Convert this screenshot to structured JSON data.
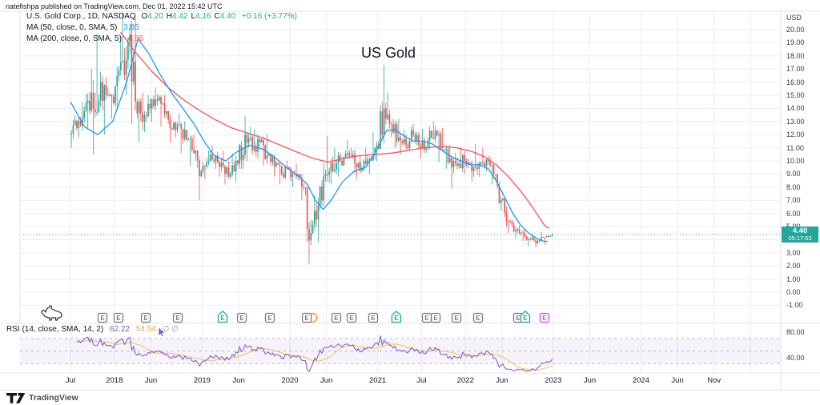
{
  "attribution": "natefishpa published on TradingView.com, Dec 01, 2022 15:42 UTC",
  "legend": {
    "title": "U.S. Gold Corp., 1D, NASDAQ",
    "ohlc": [
      {
        "label": "O",
        "value": "4.20"
      },
      {
        "label": "H",
        "value": "4.42"
      },
      {
        "label": "L",
        "value": "4.16"
      },
      {
        "label": "C",
        "value": "4.40"
      }
    ],
    "change": "+0.16 (+3.77%)",
    "ma50_label": "MA (50, close, 0, SMA, 5)",
    "ma50_value": "3.85",
    "ma200_label": "MA (200, close, 0, SMA, 5)",
    "ma200_value": "4.86"
  },
  "annotation": "US Gold",
  "price_axis": {
    "currency": "USD",
    "ticks": [
      "20.00",
      "19.00",
      "18.00",
      "17.00",
      "16.00",
      "15.00",
      "14.00",
      "13.00",
      "12.00",
      "11.00",
      "10.00",
      "9.00",
      "8.00",
      "7.00",
      "6.00",
      "5.00",
      "3.00",
      "2.00",
      "1.00",
      "0.00",
      "-1.00"
    ],
    "last_price": "4.40",
    "countdown": "05:17:53"
  },
  "rsi": {
    "label": "RSI (14, close, SMA, 14, 2)",
    "value": "62.22",
    "ma_value": "54.54",
    "hidden": "∅ ∅",
    "axis_ticks": [
      {
        "label": "80.00",
        "v": 80
      },
      {
        "label": "40.00",
        "v": 40
      }
    ]
  },
  "time_axis": [
    {
      "label": "Jul",
      "t": 2017.5
    },
    {
      "label": "2018",
      "t": 2018
    },
    {
      "label": "Jun",
      "t": 2018.417
    },
    {
      "label": "2019",
      "t": 2019
    },
    {
      "label": "Jun",
      "t": 2019.417
    },
    {
      "label": "2020",
      "t": 2020
    },
    {
      "label": "Jun",
      "t": 2020.417
    },
    {
      "label": "2021",
      "t": 2021
    },
    {
      "label": "Jul",
      "t": 2021.5
    },
    {
      "label": "2022",
      "t": 2022
    },
    {
      "label": "Jun",
      "t": 2022.417
    },
    {
      "label": "2023",
      "t": 2023
    },
    {
      "label": "Jun",
      "t": 2023.417
    },
    {
      "label": "2024",
      "t": 2024
    },
    {
      "label": "Jun",
      "t": 2024.417
    },
    {
      "label": "Nov",
      "t": 2024.833
    }
  ],
  "events": [
    {
      "t": 2017.865,
      "kind": "square",
      "label": "E"
    },
    {
      "t": 2018.047,
      "kind": "square",
      "label": "E"
    },
    {
      "t": 2018.358,
      "kind": "square",
      "label": "E"
    },
    {
      "t": 2018.723,
      "kind": "square",
      "label": "E"
    },
    {
      "t": 2019.234,
      "kind": "house",
      "label": "E"
    },
    {
      "t": 2019.453,
      "kind": "square",
      "label": "E"
    },
    {
      "t": 2019.772,
      "kind": "square",
      "label": "E"
    },
    {
      "t": 2020.192,
      "kind": "square",
      "label": "E",
      "extra": "orange-circle"
    },
    {
      "t": 2020.529,
      "kind": "square",
      "label": "E"
    },
    {
      "t": 2020.703,
      "kind": "square",
      "label": "E"
    },
    {
      "t": 2020.949,
      "kind": "square",
      "label": "E"
    },
    {
      "t": 2021.213,
      "kind": "house",
      "label": "E"
    },
    {
      "t": 2021.56,
      "kind": "square",
      "label": "E"
    },
    {
      "t": 2021.661,
      "kind": "square",
      "label": "E"
    },
    {
      "t": 2021.898,
      "kind": "square",
      "label": "E"
    },
    {
      "t": 2022.144,
      "kind": "square",
      "label": "E"
    },
    {
      "t": 2022.6,
      "kind": "square",
      "label": "E"
    },
    {
      "t": 2022.682,
      "kind": "house",
      "label": "E"
    },
    {
      "t": 2022.901,
      "kind": "pink",
      "label": "E"
    }
  ],
  "footer": {
    "brand": "TradingView"
  },
  "colors": {
    "up": "#26a69a",
    "down": "#ef5350",
    "ma50": "#2196f3",
    "ma200": "#f7525f",
    "rsi_line": "#7e57c2",
    "rsi_ma": "#e8c35c",
    "grid": "#ebedf5",
    "border": "#e0e3eb",
    "price_label_bg": "#26a69a",
    "badge_gray": "#787b86",
    "badge_teal": "#26a69a",
    "badge_pink": "#d946ef",
    "orange_marker": "#ff9800"
  },
  "chart_data": {
    "type": "candlestick",
    "title": "US Gold (U.S. Gold Corp., 1D, NASDAQ)",
    "ylabel": "USD",
    "ylim": [
      -1,
      21.5
    ],
    "x_range_years": [
      2017.5,
      2025.4
    ],
    "last_close": 4.4,
    "grid": true,
    "series": {
      "candles_monthly_hlc": {
        "note": "approximate monthly [high, low, close] read from chart, Jul 2017 - Dec 2022",
        "t_start": 2017.5,
        "t_step": 0.08333,
        "first_open": 12.0,
        "months": [
          [
            13.5,
            11,
            12.5
          ],
          [
            14.5,
            11.8,
            13.8
          ],
          [
            17,
            12.5,
            15.2
          ],
          [
            19.7,
            10.5,
            14.6
          ],
          [
            16.8,
            12,
            15
          ],
          [
            15.6,
            13.2,
            14.4
          ],
          [
            19.5,
            13.8,
            17.5
          ],
          [
            21.3,
            15,
            19
          ],
          [
            21,
            12.8,
            14.5
          ],
          [
            15.2,
            11.4,
            13
          ],
          [
            15,
            12.2,
            14
          ],
          [
            15.6,
            13,
            14.6
          ],
          [
            15,
            12.6,
            13.6
          ],
          [
            13.8,
            11.4,
            12.4
          ],
          [
            13.6,
            11.8,
            12.8
          ],
          [
            13,
            10.6,
            11.6
          ],
          [
            12,
            9.6,
            10.6
          ],
          [
            10.8,
            7,
            9.2
          ],
          [
            10.8,
            8.6,
            10
          ],
          [
            11.2,
            9.4,
            10.4
          ],
          [
            10.8,
            8.8,
            9.6
          ],
          [
            10,
            8.2,
            9
          ],
          [
            10.6,
            8.4,
            9.8
          ],
          [
            13.4,
            9.4,
            12
          ],
          [
            12.6,
            10,
            10.8
          ],
          [
            12.4,
            10.2,
            11.4
          ],
          [
            12,
            9.6,
            10.4
          ],
          [
            10.6,
            8.8,
            9.6
          ],
          [
            10,
            8.2,
            9
          ],
          [
            10,
            8.6,
            9.4
          ],
          [
            9.8,
            8,
            8.8
          ],
          [
            9,
            7,
            8
          ],
          [
            8,
            2.1,
            4.5
          ],
          [
            7.4,
            3.8,
            6.6
          ],
          [
            9.8,
            6.2,
            9
          ],
          [
            11.9,
            8.2,
            9.2
          ],
          [
            11,
            8.8,
            10
          ],
          [
            11.6,
            9.6,
            10.6
          ],
          [
            11,
            9,
            9.8
          ],
          [
            10.4,
            8.6,
            9.4
          ],
          [
            11,
            9,
            10.2
          ],
          [
            12.2,
            10,
            11.2
          ],
          [
            17.3,
            10.9,
            14
          ],
          [
            15.2,
            11.8,
            12.8
          ],
          [
            13.2,
            11,
            11.8
          ],
          [
            12.4,
            10.5,
            11.2
          ],
          [
            12.8,
            10.8,
            12
          ],
          [
            12.2,
            10.2,
            11
          ],
          [
            12.4,
            10.6,
            11.6
          ],
          [
            13,
            10.9,
            12.3
          ],
          [
            12.5,
            9.9,
            10.8
          ],
          [
            11.2,
            9.4,
            10.2
          ],
          [
            10.6,
            7.9,
            9.6
          ],
          [
            11,
            9,
            10
          ],
          [
            10.2,
            8.4,
            9.2
          ],
          [
            11.3,
            8.8,
            9.8
          ],
          [
            11,
            9.2,
            10.1
          ],
          [
            10.4,
            8.2,
            9
          ],
          [
            9,
            6.2,
            7
          ],
          [
            7.2,
            4.5,
            5.4
          ],
          [
            5.5,
            4.1,
            4.7
          ],
          [
            5.1,
            3.9,
            4.5
          ],
          [
            4.7,
            3.5,
            4
          ],
          [
            4.4,
            3.4,
            3.9
          ],
          [
            4.6,
            3.6,
            4.2
          ],
          [
            4.5,
            4.1,
            4.4
          ]
        ]
      },
      "ma50_points": [
        [
          2017.5,
          14.5
        ],
        [
          2017.66,
          12.6
        ],
        [
          2017.81,
          12
        ],
        [
          2017.98,
          13
        ],
        [
          2018.14,
          16
        ],
        [
          2018.27,
          19.3
        ],
        [
          2018.39,
          18.2
        ],
        [
          2018.52,
          16.6
        ],
        [
          2018.65,
          15.2
        ],
        [
          2018.78,
          14
        ],
        [
          2018.91,
          12.8
        ],
        [
          2019.03,
          11.4
        ],
        [
          2019.14,
          10.4
        ],
        [
          2019.27,
          10
        ],
        [
          2019.4,
          10.7
        ],
        [
          2019.54,
          11.2
        ],
        [
          2019.69,
          10.9
        ],
        [
          2019.84,
          10.2
        ],
        [
          2019.96,
          9.5
        ],
        [
          2020.09,
          8.9
        ],
        [
          2020.2,
          8.2
        ],
        [
          2020.29,
          7
        ],
        [
          2020.38,
          6.3
        ],
        [
          2020.47,
          7
        ],
        [
          2020.6,
          8.4
        ],
        [
          2020.73,
          9.2
        ],
        [
          2020.86,
          9.5
        ],
        [
          2020.97,
          10.6
        ],
        [
          2021.1,
          12.3
        ],
        [
          2021.19,
          12.4
        ],
        [
          2021.3,
          11.9
        ],
        [
          2021.41,
          11.5
        ],
        [
          2021.52,
          11.5
        ],
        [
          2021.62,
          11.3
        ],
        [
          2021.73,
          10.8
        ],
        [
          2021.84,
          10.3
        ],
        [
          2021.95,
          10
        ],
        [
          2022.06,
          9.7
        ],
        [
          2022.17,
          9.7
        ],
        [
          2022.26,
          9.4
        ],
        [
          2022.35,
          8.5
        ],
        [
          2022.45,
          7.2
        ],
        [
          2022.54,
          6
        ],
        [
          2022.63,
          5.1
        ],
        [
          2022.72,
          4.5
        ],
        [
          2022.81,
          4.1
        ],
        [
          2022.88,
          3.9
        ],
        [
          2022.94,
          3.85
        ]
      ],
      "ma200_points": [
        [
          2018.07,
          19.8
        ],
        [
          2018.25,
          18.2
        ],
        [
          2018.43,
          16.8
        ],
        [
          2018.61,
          15.6
        ],
        [
          2018.8,
          14.6
        ],
        [
          2018.98,
          13.8
        ],
        [
          2019.16,
          13.1
        ],
        [
          2019.34,
          12.5
        ],
        [
          2019.53,
          12.1
        ],
        [
          2019.71,
          11.7
        ],
        [
          2019.89,
          11.2
        ],
        [
          2020.07,
          10.7
        ],
        [
          2020.26,
          10.2
        ],
        [
          2020.44,
          9.9
        ],
        [
          2020.62,
          10.2
        ],
        [
          2020.8,
          10.4
        ],
        [
          2020.99,
          10.5
        ],
        [
          2021.17,
          10.6
        ],
        [
          2021.35,
          10.8
        ],
        [
          2021.53,
          11
        ],
        [
          2021.72,
          11.1
        ],
        [
          2021.9,
          11
        ],
        [
          2022.08,
          10.7
        ],
        [
          2022.22,
          10.3
        ],
        [
          2022.35,
          9.7
        ],
        [
          2022.49,
          8.8
        ],
        [
          2022.63,
          7.7
        ],
        [
          2022.74,
          6.7
        ],
        [
          2022.83,
          5.8
        ],
        [
          2022.9,
          5.1
        ],
        [
          2022.95,
          4.86
        ]
      ]
    },
    "indicator_pane": {
      "type": "rsi",
      "length": 14,
      "current": 62.22,
      "signal": 54.54,
      "band": [
        30,
        70
      ],
      "mid_dash": 50,
      "axis_labels": [
        80,
        40
      ]
    },
    "extra_gridline_ts": [
      2025.25
    ]
  }
}
